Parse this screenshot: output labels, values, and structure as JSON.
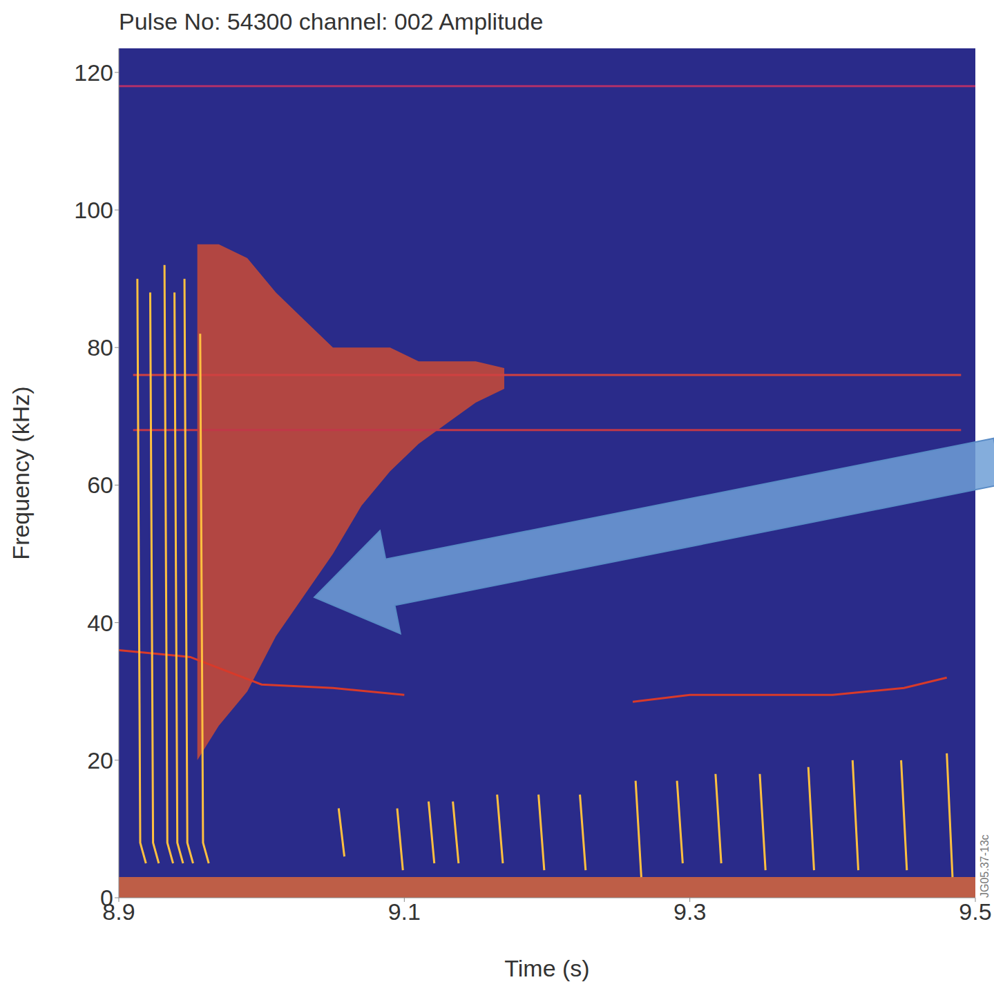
{
  "chart_data": {
    "type": "line",
    "title": "Pulse No: 54300 channel: 002 Amplitude",
    "xlabel": "Time (s)",
    "ylabel": "Frequency (kHz)",
    "annotations": [
      "JG05.37-13c"
    ],
    "xlim": [
      8.9,
      9.5
    ],
    "xticks": [
      8.9,
      9.1,
      9.3,
      9.5
    ],
    "ylim": [
      0,
      123.5
    ],
    "yticks": [
      0,
      20,
      40,
      60,
      80,
      100,
      120
    ],
    "grid": false,
    "series": [
      {
        "type": "area",
        "color": "#f07030",
        "x": [
          8.9,
          9.5
        ],
        "lower": [
          0,
          0
        ],
        "upper": [
          3,
          3
        ]
      },
      {
        "type": "area",
        "color": "#e0502a",
        "x": [
          8.955,
          8.97,
          8.99,
          9.01,
          9.03,
          9.05,
          9.07,
          9.09,
          9.11,
          9.13,
          9.15,
          9.17
        ],
        "lower": [
          20,
          25,
          30,
          38,
          44,
          50,
          57,
          62,
          66,
          69,
          72,
          74
        ],
        "upper": [
          95,
          95,
          93,
          88,
          84,
          80,
          80,
          80,
          78,
          78,
          78,
          77
        ]
      },
      {
        "type": "line",
        "color": "#b0306a",
        "x": [
          8.9,
          9.5
        ],
        "values": [
          118,
          118
        ]
      },
      {
        "type": "line",
        "color": "#d04040",
        "x": [
          8.91,
          9.49
        ],
        "values": [
          76,
          76
        ]
      },
      {
        "type": "line",
        "color": "#c03848",
        "x": [
          8.91,
          9.49
        ],
        "values": [
          68,
          68
        ]
      },
      {
        "type": "line",
        "color": "#d83a2a",
        "x": [
          8.9,
          8.95,
          9.0,
          9.05,
          9.1,
          9.18,
          9.26,
          9.3,
          9.35,
          9.4,
          9.45,
          9.48
        ],
        "values": [
          36,
          35,
          31,
          30.5,
          29.5,
          null,
          28.5,
          29.5,
          29.5,
          29.5,
          30.5,
          32
        ]
      },
      {
        "type": "line",
        "color": "#ffc040",
        "x": [
          8.913,
          8.915,
          8.919,
          8.919,
          8.922,
          8.924,
          8.928,
          8.928,
          8.932,
          8.934,
          8.938,
          8.938,
          8.939,
          8.941,
          8.945,
          8.945,
          8.946,
          8.948,
          8.952,
          8.952,
          8.957,
          8.959,
          8.963
        ],
        "values": [
          90,
          8,
          5,
          null,
          88,
          8,
          5,
          null,
          92,
          8,
          5,
          null,
          88,
          8,
          5,
          null,
          90,
          8,
          5,
          null,
          82,
          8,
          5
        ]
      },
      {
        "type": "line",
        "color": "#ffc040",
        "x": [
          9.054,
          9.058,
          9.058,
          9.095,
          9.099,
          9.099,
          9.117,
          9.121,
          9.121,
          9.134,
          9.138,
          9.138,
          9.165,
          9.169,
          9.169,
          9.194,
          9.198,
          9.198,
          9.223,
          9.227,
          9.227,
          9.262,
          9.266,
          9.266,
          9.291,
          9.295,
          9.295,
          9.318,
          9.322,
          9.322,
          9.349,
          9.353,
          9.353,
          9.383,
          9.387,
          9.387,
          9.414,
          9.418,
          9.418,
          9.448,
          9.452,
          9.452,
          9.48,
          9.484
        ],
        "values": [
          13,
          6,
          null,
          13,
          4,
          null,
          14,
          5,
          null,
          14,
          5,
          null,
          15,
          5,
          null,
          15,
          4,
          null,
          15,
          4,
          null,
          17,
          3,
          null,
          17,
          5,
          null,
          18,
          5,
          null,
          18,
          4,
          null,
          19,
          4,
          null,
          20,
          4,
          null,
          20,
          4,
          null,
          21,
          3
        ]
      }
    ]
  }
}
